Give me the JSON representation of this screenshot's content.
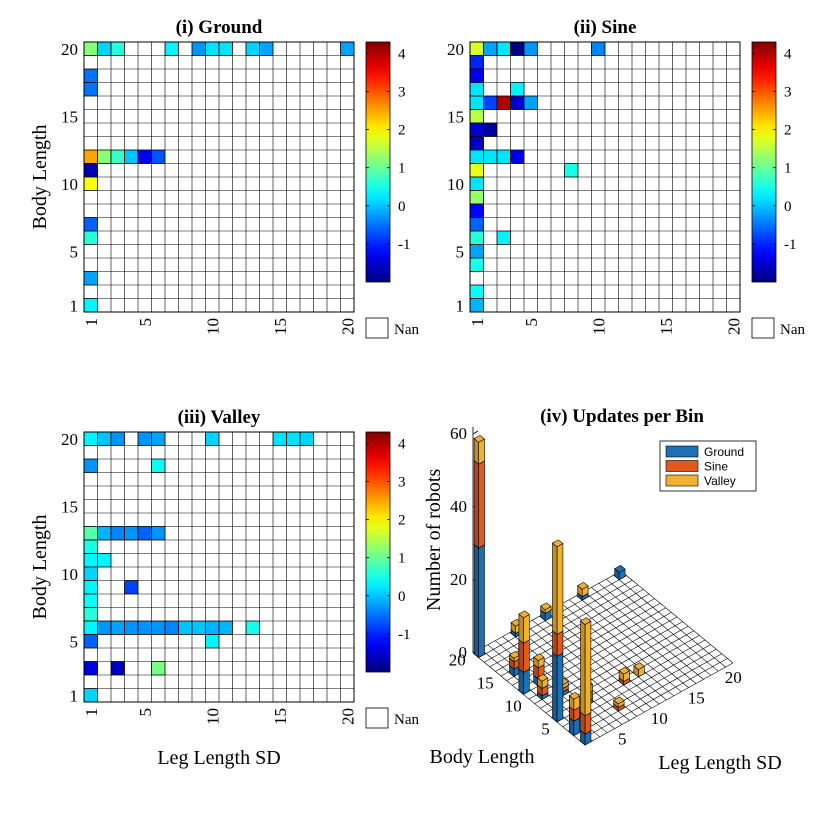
{
  "chart_data": [
    {
      "type": "heatmap",
      "panel": "ground",
      "title": "(i) Ground",
      "xlabel": "",
      "ylabel": "Body Length",
      "x_ticks": [
        "1",
        "5",
        "10",
        "15",
        "20"
      ],
      "y_ticks": [
        "1",
        "5",
        "10",
        "15",
        "20"
      ],
      "x_range": [
        1,
        20
      ],
      "y_range": [
        1,
        20
      ],
      "colorbar": {
        "ticks": [
          "4",
          "3",
          "2",
          "1",
          "0",
          "-1"
        ],
        "range": [
          -2,
          4.3
        ],
        "nan_label": "Nan"
      },
      "cells": [
        [
          1,
          20,
          1.2
        ],
        [
          2,
          20,
          0.1
        ],
        [
          3,
          20,
          0.6
        ],
        [
          7,
          20,
          0.3
        ],
        [
          9,
          20,
          -0.3
        ],
        [
          10,
          20,
          0.2
        ],
        [
          11,
          20,
          0.2
        ],
        [
          13,
          20,
          0.1
        ],
        [
          14,
          20,
          -0.2
        ],
        [
          20,
          20,
          -0.2
        ],
        [
          1,
          18,
          -0.5
        ],
        [
          1,
          17,
          -0.5
        ],
        [
          1,
          12,
          2.5
        ],
        [
          2,
          12,
          1.2
        ],
        [
          3,
          12,
          0.7
        ],
        [
          4,
          12,
          0.0
        ],
        [
          5,
          12,
          -1.3
        ],
        [
          6,
          12,
          -0.7
        ],
        [
          1,
          11,
          -1.7
        ],
        [
          1,
          10,
          1.9
        ],
        [
          1,
          7,
          -0.6
        ],
        [
          1,
          6,
          0.6
        ],
        [
          1,
          3,
          -0.2
        ],
        [
          1,
          1,
          0.3
        ]
      ]
    },
    {
      "type": "heatmap",
      "panel": "sine",
      "title": "(ii) Sine",
      "xlabel": "",
      "ylabel": "",
      "x_ticks": [
        "1",
        "5",
        "10",
        "15",
        "20"
      ],
      "y_ticks": [
        "1",
        "5",
        "10",
        "15",
        "20"
      ],
      "x_range": [
        1,
        20
      ],
      "y_range": [
        1,
        20
      ],
      "colorbar": {
        "ticks": [
          "4",
          "3",
          "2",
          "1",
          "0",
          "-1"
        ],
        "range": [
          -2,
          4.3
        ],
        "nan_label": "Nan"
      },
      "cells": [
        [
          1,
          20,
          1.7
        ],
        [
          2,
          20,
          -0.2
        ],
        [
          3,
          20,
          0.2
        ],
        [
          4,
          20,
          -2.0
        ],
        [
          5,
          20,
          -0.3
        ],
        [
          10,
          20,
          -0.4
        ],
        [
          1,
          19,
          -1.0
        ],
        [
          1,
          18,
          -1.3
        ],
        [
          1,
          17,
          0.2
        ],
        [
          4,
          17,
          0.3
        ],
        [
          1,
          16,
          0.2
        ],
        [
          2,
          16,
          -0.8
        ],
        [
          3,
          16,
          4.0
        ],
        [
          4,
          16,
          -1.5
        ],
        [
          5,
          16,
          -0.2
        ],
        [
          1,
          15,
          1.5
        ],
        [
          1,
          14,
          -1.5
        ],
        [
          2,
          14,
          -1.8
        ],
        [
          1,
          13,
          -1.6
        ],
        [
          1,
          12,
          0.2
        ],
        [
          2,
          12,
          0.2
        ],
        [
          3,
          12,
          0.2
        ],
        [
          4,
          12,
          -1.3
        ],
        [
          1,
          11,
          1.8
        ],
        [
          8,
          11,
          0.5
        ],
        [
          1,
          10,
          0.2
        ],
        [
          1,
          9,
          1.3
        ],
        [
          1,
          8,
          -1.2
        ],
        [
          1,
          7,
          -0.6
        ],
        [
          1,
          6,
          0.6
        ],
        [
          3,
          6,
          0.3
        ],
        [
          1,
          5,
          -0.2
        ],
        [
          1,
          4,
          0.5
        ],
        [
          1,
          2,
          0.4
        ],
        [
          1,
          1,
          -0.1
        ]
      ]
    },
    {
      "type": "heatmap",
      "panel": "valley",
      "title": "(iii) Valley",
      "xlabel": "Leg Length SD",
      "ylabel": "Body Length",
      "x_ticks": [
        "1",
        "5",
        "10",
        "15",
        "20"
      ],
      "y_ticks": [
        "1",
        "5",
        "10",
        "15",
        "20"
      ],
      "x_range": [
        1,
        20
      ],
      "y_range": [
        1,
        20
      ],
      "colorbar": {
        "ticks": [
          "4",
          "3",
          "2",
          "1",
          "0",
          "-1"
        ],
        "range": [
          -2,
          4.3
        ],
        "nan_label": "Nan"
      },
      "cells": [
        [
          1,
          20,
          0.3
        ],
        [
          2,
          20,
          0.0
        ],
        [
          3,
          20,
          -0.3
        ],
        [
          5,
          20,
          -0.3
        ],
        [
          6,
          20,
          -0.2
        ],
        [
          10,
          20,
          0.1
        ],
        [
          15,
          20,
          0.2
        ],
        [
          16,
          20,
          0.2
        ],
        [
          17,
          20,
          0.1
        ],
        [
          1,
          18,
          -0.3
        ],
        [
          6,
          18,
          0.4
        ],
        [
          1,
          13,
          0.9
        ],
        [
          2,
          13,
          -0.1
        ],
        [
          3,
          13,
          -0.4
        ],
        [
          4,
          13,
          -0.3
        ],
        [
          5,
          13,
          -0.6
        ],
        [
          6,
          13,
          -0.3
        ],
        [
          1,
          12,
          0.5
        ],
        [
          1,
          11,
          0.3
        ],
        [
          2,
          11,
          0.3
        ],
        [
          1,
          10,
          0.1
        ],
        [
          1,
          9,
          0.3
        ],
        [
          4,
          9,
          -0.8
        ],
        [
          1,
          8,
          0.4
        ],
        [
          1,
          7,
          0.6
        ],
        [
          1,
          6,
          0.3
        ],
        [
          2,
          6,
          -0.3
        ],
        [
          3,
          6,
          -0.2
        ],
        [
          4,
          6,
          -0.3
        ],
        [
          5,
          6,
          -0.3
        ],
        [
          6,
          6,
          -0.3
        ],
        [
          7,
          6,
          -0.4
        ],
        [
          8,
          6,
          0.0
        ],
        [
          9,
          6,
          0.0
        ],
        [
          10,
          6,
          -0.1
        ],
        [
          11,
          6,
          -0.1
        ],
        [
          13,
          6,
          0.5
        ],
        [
          1,
          5,
          -0.6
        ],
        [
          10,
          5,
          0.3
        ],
        [
          1,
          3,
          -1.4
        ],
        [
          3,
          3,
          -1.6
        ],
        [
          6,
          3,
          1.1
        ],
        [
          1,
          1,
          0.1
        ]
      ]
    },
    {
      "type": "bar3d",
      "panel": "updates",
      "title": "(iv) Updates per Bin",
      "xlabel": "Leg Length SD",
      "ylabel": "Body Length",
      "zlabel": "Number of robots",
      "z_ticks": [
        "0",
        "20",
        "40",
        "60"
      ],
      "x_ticks": [
        "5",
        "10",
        "15",
        "20"
      ],
      "y_ticks": [
        "5",
        "10",
        "15",
        "20"
      ],
      "z_range": [
        0,
        62
      ],
      "legend": [
        "Ground",
        "Sine",
        "Valley"
      ],
      "series_colors": [
        "#1f6fb4",
        "#e0591f",
        "#f0b030"
      ],
      "stacks": [
        {
          "x": 1,
          "y": 20,
          "values": [
            30,
            23,
            6
          ]
        },
        {
          "x": 1,
          "y": 12,
          "values": [
            6,
            8,
            7
          ]
        },
        {
          "x": 1,
          "y": 6,
          "values": [
            18,
            6,
            24
          ]
        },
        {
          "x": 1,
          "y": 1,
          "values": [
            3,
            5,
            25
          ]
        },
        {
          "x": 1,
          "y": 3,
          "values": [
            4,
            3,
            3
          ]
        },
        {
          "x": 2,
          "y": 15,
          "values": [
            2,
            2,
            1
          ]
        },
        {
          "x": 3,
          "y": 12,
          "values": [
            2,
            3,
            2
          ]
        },
        {
          "x": 4,
          "y": 16,
          "values": [
            1,
            2,
            1
          ]
        },
        {
          "x": 5,
          "y": 6,
          "values": [
            1,
            2,
            2
          ]
        },
        {
          "x": 2,
          "y": 10,
          "values": [
            1,
            2,
            2
          ]
        },
        {
          "x": 3,
          "y": 5,
          "values": [
            1,
            1,
            2
          ]
        },
        {
          "x": 10,
          "y": 20,
          "values": [
            2,
            0,
            1
          ]
        },
        {
          "x": 15,
          "y": 20,
          "values": [
            1,
            0,
            2
          ]
        },
        {
          "x": 20,
          "y": 20,
          "values": [
            2,
            0,
            0
          ]
        },
        {
          "x": 6,
          "y": 20,
          "values": [
            1,
            0,
            2
          ]
        },
        {
          "x": 10,
          "y": 6,
          "values": [
            0,
            1,
            2
          ]
        },
        {
          "x": 7,
          "y": 3,
          "values": [
            0,
            1,
            1
          ]
        },
        {
          "x": 12,
          "y": 6,
          "values": [
            0,
            0,
            2
          ]
        },
        {
          "x": 4,
          "y": 9,
          "values": [
            1,
            1,
            1
          ]
        }
      ]
    }
  ]
}
